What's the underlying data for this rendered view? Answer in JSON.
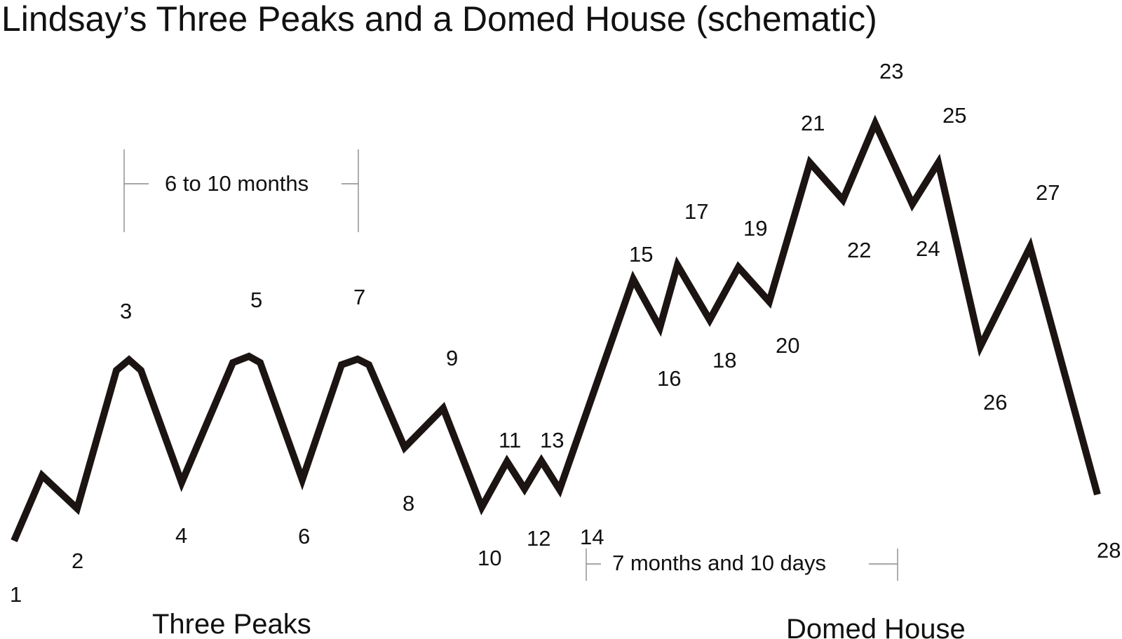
{
  "title": "Lindsay’s Three Peaks and a Domed House (schematic)",
  "line_color": "#1b1412",
  "point_labels": [
    "1",
    "2",
    "3",
    "4",
    "5",
    "6",
    "7",
    "8",
    "9",
    "10",
    "11",
    "12",
    "13",
    "14",
    "15",
    "16",
    "17",
    "18",
    "19",
    "20",
    "21",
    "22",
    "23",
    "24",
    "25",
    "26",
    "27",
    "28"
  ],
  "intervals": {
    "peaks_span": "6 to 10 months",
    "dome_span": "7 months and 10 days"
  },
  "sections": {
    "three_peaks": "Three Peaks",
    "domed_house": "Domed House"
  }
}
